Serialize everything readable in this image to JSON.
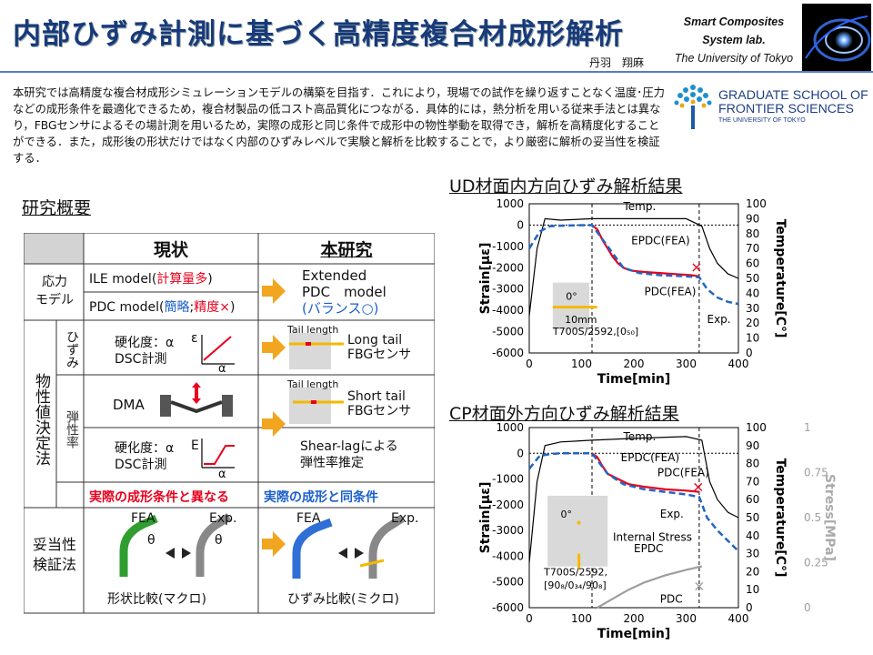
{
  "header": {
    "title": "内部ひずみ計測に基づく高精度複合材成形解析",
    "author": "丹羽　翔麻",
    "lab_line1": "Smart Composites",
    "lab_line2": "System lab.",
    "lab_line3": "The University of Tokyo"
  },
  "intro": {
    "text": "本研究では高精度な複合材成形シミュレーションモデルの構築を目指す．これにより，現場での試作を繰り返すことなく温度･圧力などの成形条件を最適化できるため，複合材製品の低コスト高品質化につながる．具体的には，熱分析を用いる従来手法とは異なり，FBGセンサによるその場計測を用いるため，実際の成形と同じ条件で成形中の物性挙動を取得でき，解析を高精度化することができる．また，成形後の形状だけではなく内部のひずみレベルで実験と解析を比較することで，より厳密に解析の妥当性を検証する．"
  },
  "school": {
    "line1": "GRADUATE SCHOOL OF",
    "line2": "FRONTIER SCIENCES",
    "line3": "THE UNIVERSITY OF TOKYO"
  },
  "overview": {
    "heading": "研究概要",
    "col_current": "現状",
    "col_this": "本研究",
    "row1_label": "応力\nモデル",
    "ile_prefix": "ILE model(",
    "ile_red": "計算量多",
    "ile_suffix": ")",
    "pdc_prefix": "PDC model(",
    "pdc_blue": "簡略",
    "pdc_sep": ";",
    "pdc_red": "精度×",
    "pdc_suffix": ")",
    "ext_line1": "Extended",
    "ext_line2": "PDC　model",
    "ext_line3": "(バランス○)",
    "props_label": "物性値決定法",
    "hizumi_label": "ひずみ",
    "dansei_label": "弾性率",
    "hardness1_a": "硬化度：α",
    "hardness1_b": "DSC計測",
    "eps_symbol": "ε",
    "alpha_symbol": "α",
    "tail_length": "Tail length",
    "long_tail": "Long tail",
    "fbg_sensor": "FBGセンサ",
    "dma": "DMA",
    "short_tail": "Short tail",
    "hardness2_a": "硬化度：α",
    "hardness2_b": "DSC計測",
    "e_symbol": "E",
    "shearlag_a": "Shear-lagによる",
    "shearlag_b": "弾性率推定",
    "diff_cond": "実際の成形条件と異なる",
    "same_cond": "実際の成形と同条件",
    "valid_label": "妥当性検証法",
    "fea": "FEA",
    "exp": "Exp.",
    "theta": "θ",
    "shape_compare": "形状比較(マクロ)",
    "strain_compare": "ひずみ比較(ミクロ)"
  },
  "chart_data": [
    {
      "type": "line",
      "title": "UD材面内方向ひずみ解析結果",
      "xlabel": "Time[min]",
      "ylabel": "Strain[με]",
      "y2label": "Temperature[C°]",
      "xlim": [
        0,
        400
      ],
      "ylim": [
        -6000,
        1000
      ],
      "y2lim": [
        0,
        100
      ],
      "xticks": [
        0,
        100,
        200,
        300,
        400
      ],
      "yticks": [
        1000,
        0,
        -1000,
        -2000,
        -3000,
        -4000,
        -5000,
        -6000
      ],
      "y2ticks": [
        100,
        90,
        80,
        70,
        60,
        50,
        40,
        30,
        20,
        10,
        0
      ],
      "series": [
        {
          "name": "Temp.",
          "axis": "y2",
          "color": "#000000",
          "x": [
            0,
            15,
            30,
            60,
            120,
            200,
            300,
            330,
            345,
            360,
            380,
            400
          ],
          "y": [
            25,
            70,
            90,
            89,
            90,
            90,
            90,
            85,
            70,
            60,
            53,
            50
          ]
        },
        {
          "name": "EPDC(FEA)",
          "color": "#e8001c",
          "x": [
            120,
            130,
            140,
            150,
            160,
            170,
            180,
            190,
            200,
            220,
            250,
            280,
            310,
            325
          ],
          "y": [
            0,
            -200,
            -700,
            -1100,
            -1500,
            -1800,
            -2000,
            -2100,
            -2150,
            -2200,
            -2250,
            -2300,
            -2350,
            -2400
          ]
        },
        {
          "name": "Exp.",
          "color": "#2166c4",
          "x": [
            0,
            20,
            40,
            60,
            90,
            120,
            150,
            180,
            210,
            250,
            300,
            325,
            340,
            360,
            380,
            400
          ],
          "y": [
            -1100,
            -300,
            -50,
            -30,
            -10,
            0,
            -1000,
            -2000,
            -2250,
            -2350,
            -2400,
            -2450,
            -3000,
            -3400,
            -3600,
            -3700
          ]
        }
      ],
      "annotations": [
        "Temp.",
        "EPDC(FEA)",
        "PDC(FEA)",
        "Exp.",
        "0°",
        "10mm",
        "T700S/2592,[0₅₀]"
      ]
    },
    {
      "type": "line",
      "title": "CP材面外方向ひずみ解析結果",
      "xlabel": "Time[min]",
      "ylabel": "Strain[με]",
      "y2label": "Temperature[C°]",
      "y3label": "Stress[MPa]",
      "xlim": [
        0,
        400
      ],
      "ylim": [
        -6000,
        1000
      ],
      "y2lim": [
        0,
        100
      ],
      "y3lim": [
        0,
        1
      ],
      "xticks": [
        0,
        100,
        200,
        300,
        400
      ],
      "yticks": [
        1000,
        0,
        -1000,
        -2000,
        -3000,
        -4000,
        -5000,
        -6000
      ],
      "y2ticks": [
        100,
        90,
        80,
        70,
        60,
        50,
        40,
        30,
        20,
        10,
        0
      ],
      "y3ticks": [
        1,
        0.75,
        0.5,
        0.25,
        0
      ],
      "series": [
        {
          "name": "Temp.",
          "axis": "y2",
          "color": "#000000",
          "x": [
            0,
            15,
            30,
            60,
            120,
            200,
            300,
            330,
            345,
            360,
            380,
            400
          ],
          "y": [
            25,
            70,
            90,
            92,
            93,
            94,
            95,
            93,
            70,
            60,
            53,
            50
          ]
        },
        {
          "name": "EPDC(FEA)",
          "color": "#e8001c",
          "x": [
            120,
            130,
            140,
            150,
            170,
            190,
            220,
            260,
            300,
            325
          ],
          "y": [
            0,
            -150,
            -500,
            -800,
            -1000,
            -1200,
            -1300,
            -1400,
            -1450,
            -1500
          ]
        },
        {
          "name": "Exp.",
          "color": "#2166c4",
          "x": [
            0,
            20,
            40,
            60,
            90,
            120,
            150,
            180,
            220,
            260,
            300,
            325,
            340,
            360,
            380,
            400
          ],
          "y": [
            -600,
            -100,
            -30,
            0,
            0,
            0,
            -800,
            -1200,
            -1400,
            -1500,
            -1600,
            -1700,
            -2500,
            -3000,
            -3400,
            -3800
          ]
        },
        {
          "name": "Internal Stress EPDC",
          "axis": "y3",
          "color": "#9e9e9e",
          "x": [
            130,
            160,
            190,
            220,
            260,
            300,
            330
          ],
          "y": [
            0,
            0.05,
            0.1,
            0.14,
            0.18,
            0.21,
            0.23
          ]
        }
      ],
      "annotations": [
        "Temp.",
        "EPDC(FEA)",
        "PDC(FEA)",
        "Exp.",
        "Internal Stress",
        "EPDC",
        "PDC",
        "0°",
        "T700S/2592,",
        "[90₈/0₃₄/90₈]"
      ]
    }
  ],
  "colors": {
    "title": "#183a7a",
    "red": "#e8001c",
    "blue": "#1a5fcc",
    "orange": "#f2a51e",
    "exp": "#2166c4"
  }
}
